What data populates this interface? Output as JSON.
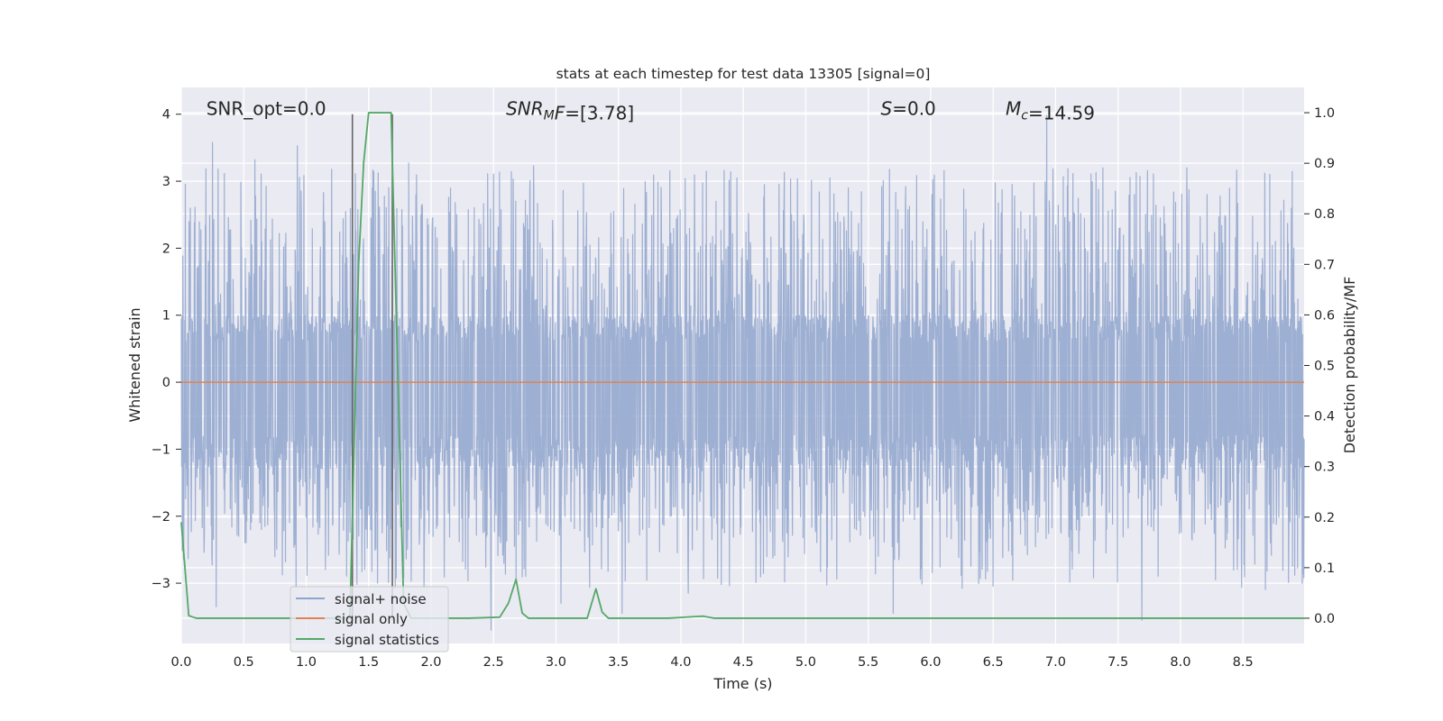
{
  "chart_data": {
    "type": "line",
    "title": "stats at each timestep for test data 13305 [signal=0]",
    "xlabel": "Time (s)",
    "ylabel": "Whitened strain",
    "y2label": "Detection probability/MF",
    "xlim": [
      0.0,
      8.99
    ],
    "ylim": [
      -3.9,
      4.4
    ],
    "y2lim": [
      -0.05,
      1.05
    ],
    "xticks": [
      0.0,
      0.5,
      1.0,
      1.5,
      2.0,
      2.5,
      3.0,
      3.5,
      4.0,
      4.5,
      5.0,
      5.5,
      6.0,
      6.5,
      7.0,
      7.5,
      8.0,
      8.5
    ],
    "xtick_labels": [
      "0.0",
      "0.5",
      "1.0",
      "1.5",
      "2.0",
      "2.5",
      "3.0",
      "3.5",
      "4.0",
      "4.5",
      "5.0",
      "5.5",
      "6.0",
      "6.5",
      "7.0",
      "7.5",
      "8.0",
      "8.5"
    ],
    "yticks": [
      -3,
      -2,
      -1,
      0,
      1,
      2,
      3,
      4
    ],
    "ytick_labels": [
      "−3",
      "−2",
      "−1",
      "0",
      "1",
      "2",
      "3",
      "4"
    ],
    "y2ticks": [
      0.0,
      0.1,
      0.2,
      0.3,
      0.4,
      0.5,
      0.6,
      0.7,
      0.8,
      0.9,
      1.0
    ],
    "y2tick_labels": [
      "0.0",
      "0.1",
      "0.2",
      "0.3",
      "0.4",
      "0.5",
      "0.6",
      "0.7",
      "0.8",
      "0.9",
      "1.0"
    ],
    "grid": true,
    "legend_position": "lower-left",
    "annotations": [
      {
        "id": "snr-opt",
        "segments": [
          {
            "text": "SNR_opt=0.0",
            "italic": false
          }
        ],
        "x": 0.2,
        "y": 4.1
      },
      {
        "id": "snr-mf",
        "segments": [
          {
            "text": "SNR",
            "italic": true
          },
          {
            "text": "M",
            "italic": true,
            "sub": true
          },
          {
            "text": "F",
            "italic": true
          },
          {
            "text": "=[3.78]",
            "italic": false
          }
        ],
        "x": 2.6,
        "y": 4.1
      },
      {
        "id": "s-stat",
        "segments": [
          {
            "text": "S",
            "italic": true
          },
          {
            "text": "=0.0",
            "italic": false
          }
        ],
        "x": 5.6,
        "y": 4.1
      },
      {
        "id": "chirp-mass",
        "segments": [
          {
            "text": "M",
            "italic": true
          },
          {
            "text": "c",
            "italic": true,
            "sub": true
          },
          {
            "text": "=14.59",
            "italic": false
          }
        ],
        "x": 6.6,
        "y": 4.1
      }
    ],
    "vlines": [
      {
        "x": 1.37,
        "y0": -3.55,
        "y1": 4.0,
        "color": "#666666"
      },
      {
        "x": 1.69,
        "y0": -3.55,
        "y1": 4.0,
        "color": "#666666"
      }
    ],
    "series": [
      {
        "name": "signal+ noise",
        "color": "#8fa4cc",
        "kind": "noise",
        "t_start": 0.0,
        "t_end": 8.99,
        "samples": 3600,
        "core_amplitude": [
          -1.3,
          1.0
        ],
        "peak_upper": 2.6,
        "peak_lower": -2.4,
        "spikes": [
          {
            "x": 0.25,
            "y": 3.58
          },
          {
            "x": 0.59,
            "y": 3.32
          },
          {
            "x": 0.93,
            "y": 3.53
          },
          {
            "x": 1.82,
            "y": 3.27
          },
          {
            "x": 2.82,
            "y": 3.23
          },
          {
            "x": 6.93,
            "y": 3.98
          },
          {
            "x": 8.05,
            "y": 3.2
          },
          {
            "x": 7.38,
            "y": 3.2
          },
          {
            "x": 4.45,
            "y": 3.05
          },
          {
            "x": 0.28,
            "y": -3.35
          },
          {
            "x": 2.48,
            "y": -3.7
          },
          {
            "x": 3.04,
            "y": -3.3
          },
          {
            "x": 3.53,
            "y": -3.45
          },
          {
            "x": 4.06,
            "y": -3.15
          },
          {
            "x": 5.7,
            "y": -3.45
          },
          {
            "x": 7.69,
            "y": -3.55
          },
          {
            "x": 8.28,
            "y": -2.95
          },
          {
            "x": 1.69,
            "y": -2.8
          }
        ]
      },
      {
        "name": "signal only",
        "color": "#dd8452",
        "x": [
          0.0,
          8.99
        ],
        "y": [
          0.0,
          0.0
        ]
      },
      {
        "name": "signal statistics",
        "color": "#55a868",
        "axis": "right",
        "x": [
          0.0,
          0.06,
          0.12,
          0.3,
          0.6,
          0.9,
          1.2,
          1.35,
          1.42,
          1.46,
          1.5,
          1.56,
          1.62,
          1.68,
          1.74,
          1.78,
          1.84,
          2.0,
          2.3,
          2.55,
          2.62,
          2.68,
          2.73,
          2.78,
          3.0,
          3.25,
          3.32,
          3.37,
          3.42,
          3.7,
          3.9,
          4.1,
          4.18,
          4.27,
          4.6,
          5.0,
          6.0,
          7.0,
          8.0,
          8.99
        ],
        "y": [
          0.19,
          0.005,
          0.0,
          0.0,
          0.0,
          0.0,
          0.0,
          0.0,
          0.7,
          0.9,
          1.0,
          1.0,
          1.0,
          1.0,
          0.42,
          0.03,
          0.0,
          0.0,
          0.0,
          0.002,
          0.03,
          0.077,
          0.01,
          0.0,
          0.0,
          0.0,
          0.058,
          0.012,
          0.0,
          0.0,
          0.0,
          0.003,
          0.004,
          0.0,
          0.0,
          0.0,
          0.0,
          0.0,
          0.0,
          0.0
        ]
      }
    ]
  }
}
